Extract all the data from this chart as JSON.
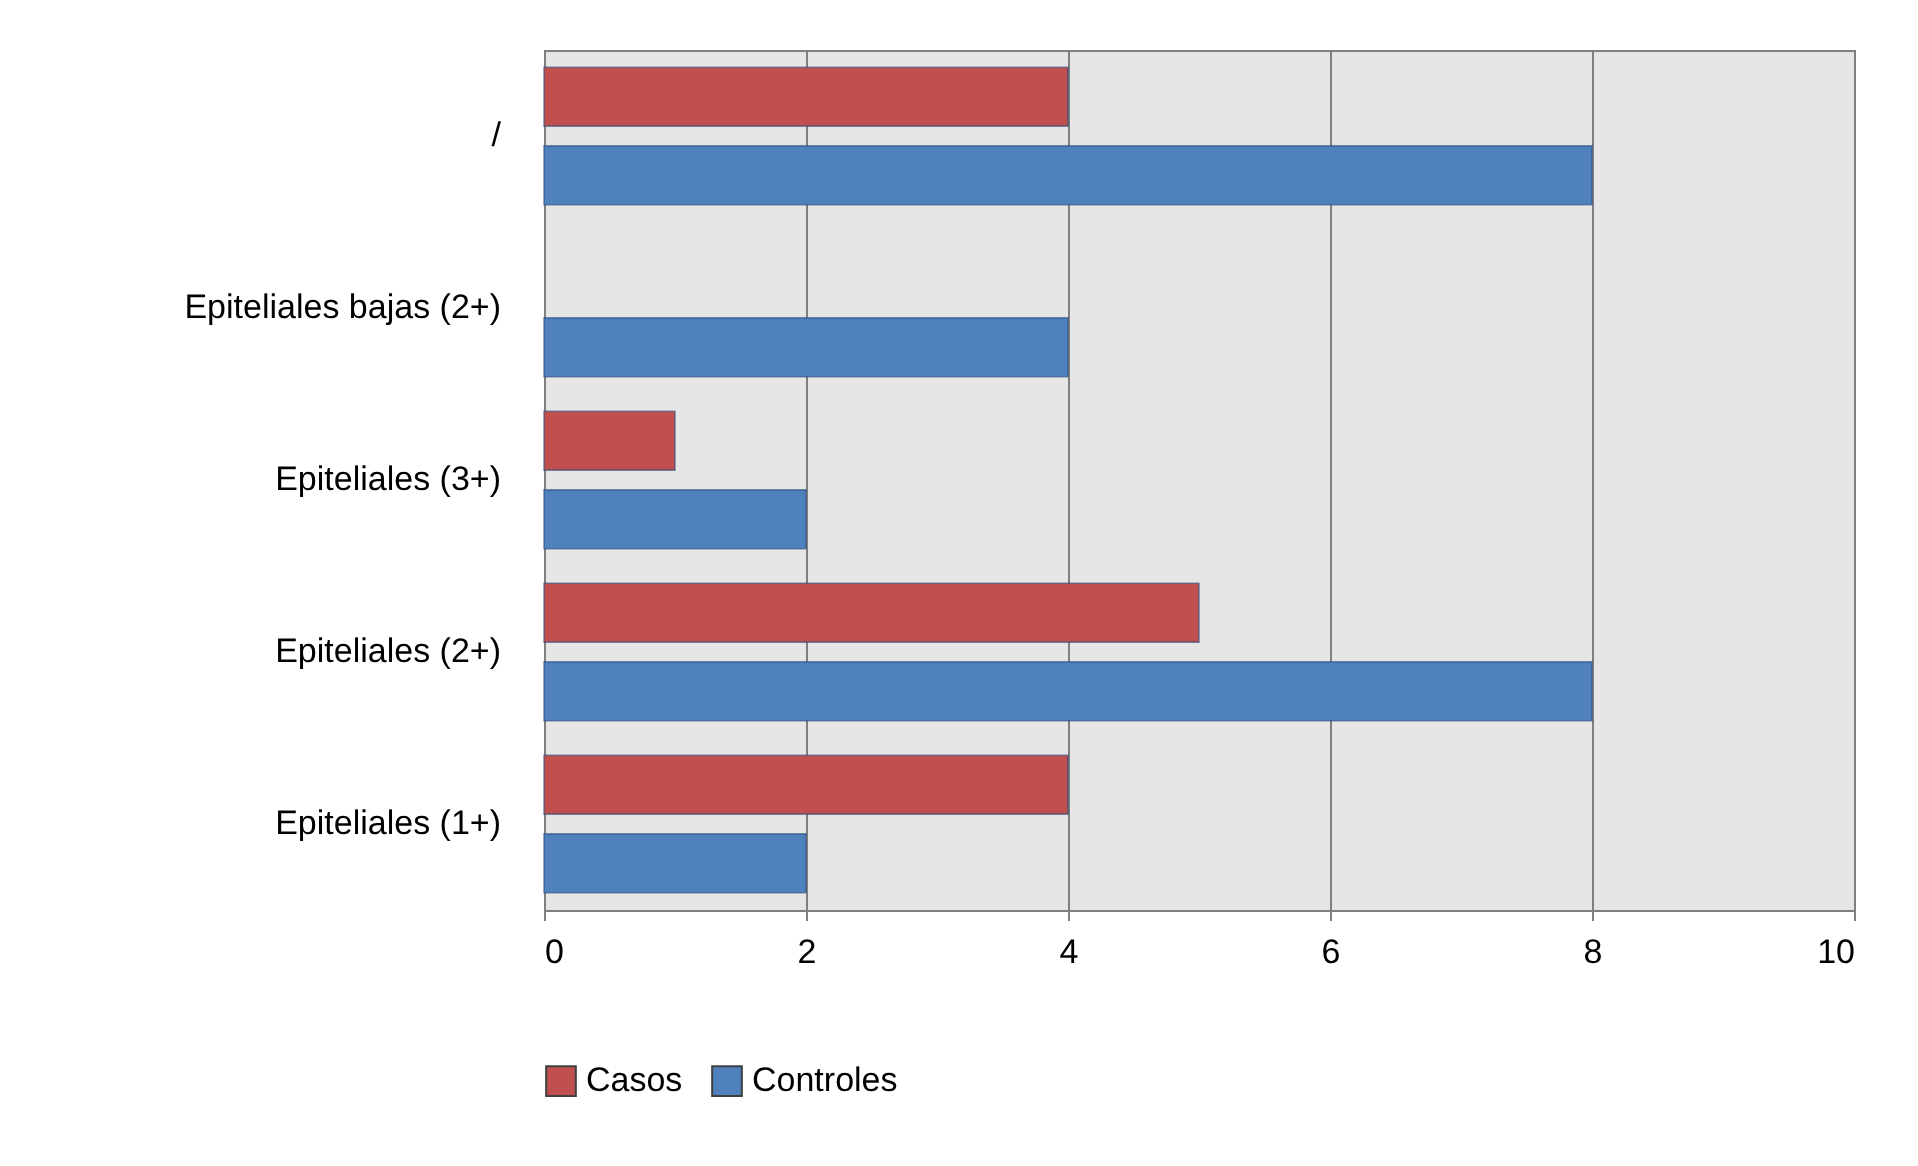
{
  "chart_data": {
    "type": "bar",
    "orientation": "horizontal",
    "categories": [
      "/",
      "Epiteliales bajas (2+)",
      "Epiteliales (3+)",
      "Epiteliales (2+)",
      "Epiteliales (1+)"
    ],
    "series": [
      {
        "name": "Casos",
        "color": "#c0504d",
        "values": [
          4,
          null,
          1,
          5,
          4
        ]
      },
      {
        "name": "Controles",
        "color": "#4f81bd",
        "values": [
          8,
          4,
          2,
          8,
          2
        ]
      }
    ],
    "xlim": [
      0,
      10
    ],
    "xticks": [
      0,
      2,
      4,
      6,
      8,
      10
    ],
    "grid": "x",
    "legend": "bottom"
  }
}
